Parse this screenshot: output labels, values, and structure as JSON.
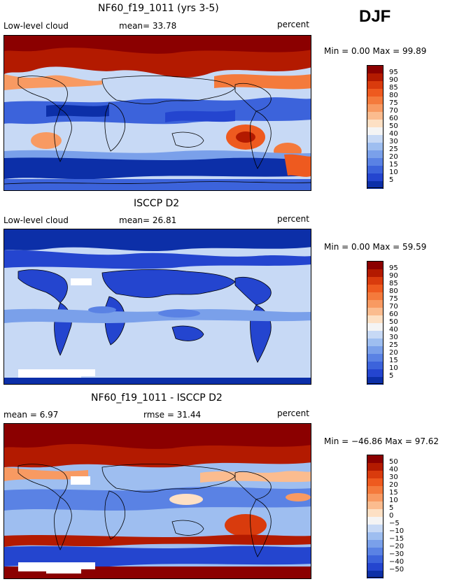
{
  "season": "DJF",
  "panels": [
    {
      "id": "model",
      "title": "NF60_f19_1011 (yrs 3-5)",
      "left_label": "Low-level cloud",
      "mid_label": "mean=  33.78",
      "right_label": "percent",
      "minmax": "Min =    0.00 Max =   99.89",
      "colorbar_labels": [
        "95",
        "90",
        "85",
        "80",
        "75",
        "70",
        "60",
        "50",
        "40",
        "30",
        "25",
        "20",
        "15",
        "10",
        "5"
      ],
      "colorbar_colors": [
        "#8b0000",
        "#b31a00",
        "#d93b0d",
        "#ee5a1f",
        "#f47a3c",
        "#f89a62",
        "#fbbc8f",
        "#fde0c4",
        "#f4f4f4",
        "#c7d9f5",
        "#9ebef0",
        "#7aa0ea",
        "#5a82e4",
        "#3c63db",
        "#2445cf",
        "#0c2fa8"
      ],
      "map_data": "low-level cloud fraction, model"
    },
    {
      "id": "obs",
      "title": "ISCCP D2",
      "left_label": "Low-level cloud",
      "mid_label": "mean=  26.81",
      "right_label": "percent",
      "minmax": "Min =    0.00 Max =   59.59",
      "colorbar_labels": [
        "95",
        "90",
        "85",
        "80",
        "75",
        "70",
        "60",
        "50",
        "40",
        "30",
        "25",
        "20",
        "15",
        "10",
        "5"
      ],
      "colorbar_colors": [
        "#8b0000",
        "#b31a00",
        "#d93b0d",
        "#ee5a1f",
        "#f47a3c",
        "#f89a62",
        "#fbbc8f",
        "#fde0c4",
        "#f4f4f4",
        "#c7d9f5",
        "#9ebef0",
        "#7aa0ea",
        "#5a82e4",
        "#3c63db",
        "#2445cf",
        "#0c2fa8"
      ],
      "map_data": "low-level cloud fraction, observed"
    },
    {
      "id": "diff",
      "title": "NF60_f19_1011 - ISCCP D2",
      "left_label": "mean =    6.97",
      "mid_label": "rmse =  31.44",
      "right_label": "percent",
      "minmax": "Min = −46.86 Max =   97.62",
      "colorbar_labels": [
        "50",
        "40",
        "30",
        "20",
        "15",
        "10",
        "5",
        "0",
        "−5",
        "−10",
        "−15",
        "−20",
        "−30",
        "−40",
        "−50"
      ],
      "colorbar_colors": [
        "#8b0000",
        "#b31a00",
        "#d93b0d",
        "#ee5a1f",
        "#f47a3c",
        "#f89a62",
        "#fbbc8f",
        "#fde0c4",
        "#f4f4f4",
        "#c7d9f5",
        "#9ebef0",
        "#7aa0ea",
        "#5a82e4",
        "#3c63db",
        "#2445cf",
        "#0c2fa8"
      ],
      "map_data": "difference model minus observation"
    }
  ]
}
